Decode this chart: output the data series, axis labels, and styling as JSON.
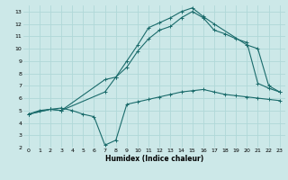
{
  "xlabel": "Humidex (Indice chaleur)",
  "ylabel": "",
  "bg_color": "#cce8e8",
  "line_color": "#1a6b6b",
  "grid_color": "#b0d8d8",
  "xlim": [
    -0.5,
    23.5
  ],
  "ylim": [
    2,
    13.5
  ],
  "xticks": [
    0,
    1,
    2,
    3,
    4,
    5,
    6,
    7,
    8,
    9,
    10,
    11,
    12,
    13,
    14,
    15,
    16,
    17,
    18,
    19,
    20,
    21,
    22,
    23
  ],
  "yticks": [
    2,
    3,
    4,
    5,
    6,
    7,
    8,
    9,
    10,
    11,
    12,
    13
  ],
  "curve1_x": [
    0,
    1,
    2,
    3,
    4,
    5,
    6,
    7,
    8,
    9,
    10,
    11,
    12,
    13,
    14,
    15,
    16,
    17,
    18,
    19,
    20,
    21,
    22,
    23
  ],
  "curve1_y": [
    4.7,
    5.0,
    5.1,
    5.2,
    5.0,
    4.7,
    4.5,
    2.2,
    2.6,
    5.5,
    5.7,
    5.9,
    6.1,
    6.3,
    6.5,
    6.6,
    6.7,
    6.5,
    6.3,
    6.2,
    6.1,
    6.0,
    5.9,
    5.8
  ],
  "curve2_x": [
    0,
    2,
    3,
    7,
    8,
    9,
    10,
    11,
    12,
    13,
    14,
    15,
    16,
    17,
    20,
    21,
    22,
    23
  ],
  "curve2_y": [
    4.7,
    5.1,
    5.0,
    7.5,
    7.7,
    9.0,
    10.3,
    11.7,
    12.1,
    12.5,
    13.0,
    13.3,
    12.6,
    12.0,
    10.3,
    10.0,
    7.0,
    6.5
  ],
  "curve3_x": [
    0,
    2,
    3,
    7,
    8,
    9,
    10,
    11,
    12,
    13,
    14,
    15,
    16,
    17,
    18,
    19,
    20,
    21,
    22,
    23
  ],
  "curve3_y": [
    4.7,
    5.1,
    5.0,
    6.5,
    7.7,
    8.5,
    9.8,
    10.8,
    11.5,
    11.8,
    12.5,
    13.0,
    12.5,
    11.5,
    11.2,
    10.8,
    10.5,
    7.2,
    6.8,
    6.5
  ],
  "marker": "+",
  "markersize": 3,
  "linewidth": 0.8
}
